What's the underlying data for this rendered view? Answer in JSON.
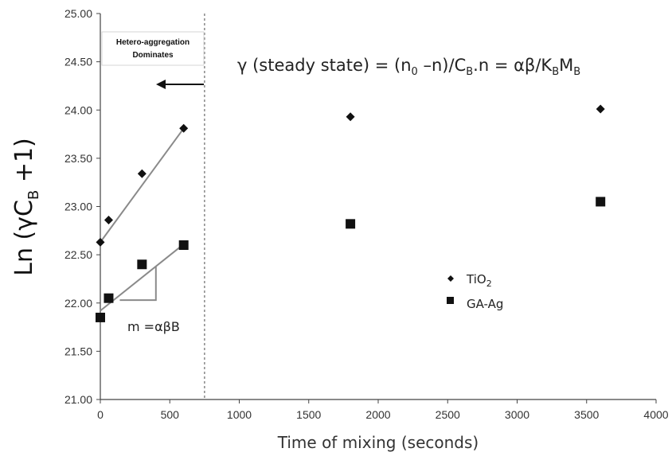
{
  "chart_data": {
    "type": "scatter",
    "title": "",
    "xlabel": "Time of mixing (seconds)",
    "ylabel": "Ln (γC",
    "ylabel_sub": "B",
    "ylabel_tail": " +1)",
    "xlim": [
      0,
      4000
    ],
    "ylim": [
      21.0,
      25.0
    ],
    "x_ticks": [
      "0",
      "500",
      "1000",
      "1500",
      "2000",
      "2500",
      "3000",
      "3500",
      "4000"
    ],
    "y_ticks": [
      "21.00",
      "21.50",
      "22.00",
      "22.50",
      "23.00",
      "23.50",
      "24.00",
      "24.50",
      "25.00"
    ],
    "series": [
      {
        "name": "TiO2",
        "label_main": "TiO",
        "label_sub": "2",
        "marker": "diamond",
        "x": [
          0,
          60,
          300,
          600,
          1800,
          3600
        ],
        "y": [
          22.63,
          22.86,
          23.34,
          23.81,
          23.93,
          24.01
        ]
      },
      {
        "name": "GA-Ag",
        "label_main": "GA-Ag",
        "label_sub": "",
        "marker": "square",
        "x": [
          0,
          60,
          300,
          600,
          1800,
          3600
        ],
        "y": [
          21.85,
          22.05,
          22.4,
          22.6,
          22.82,
          23.05
        ]
      }
    ],
    "fit_lines": [
      {
        "x": [
          0,
          600
        ],
        "y": [
          22.63,
          23.81
        ]
      },
      {
        "x": [
          0,
          600
        ],
        "y": [
          21.92,
          22.61
        ]
      }
    ],
    "slope_triangle": {
      "x": [
        140,
        400
      ],
      "y": [
        22.03,
        22.38
      ]
    },
    "divider_x": 750,
    "grid": false
  },
  "annotations": {
    "box_line1": "Hetero-aggregation",
    "box_line2": "Dominates",
    "slope_label": "m =αβB",
    "eq": {
      "p1": "γ (steady state) = (n",
      "s1": "0",
      "p2": " –n)/C",
      "s2": "B",
      "p3": ".n = αβ/K",
      "s3": "B",
      "p4": "M",
      "s4": "B"
    }
  },
  "colors": {
    "marker": "#111111",
    "fit_line": "#8a8a8a",
    "axis": "#444444",
    "divider": "#888888"
  }
}
